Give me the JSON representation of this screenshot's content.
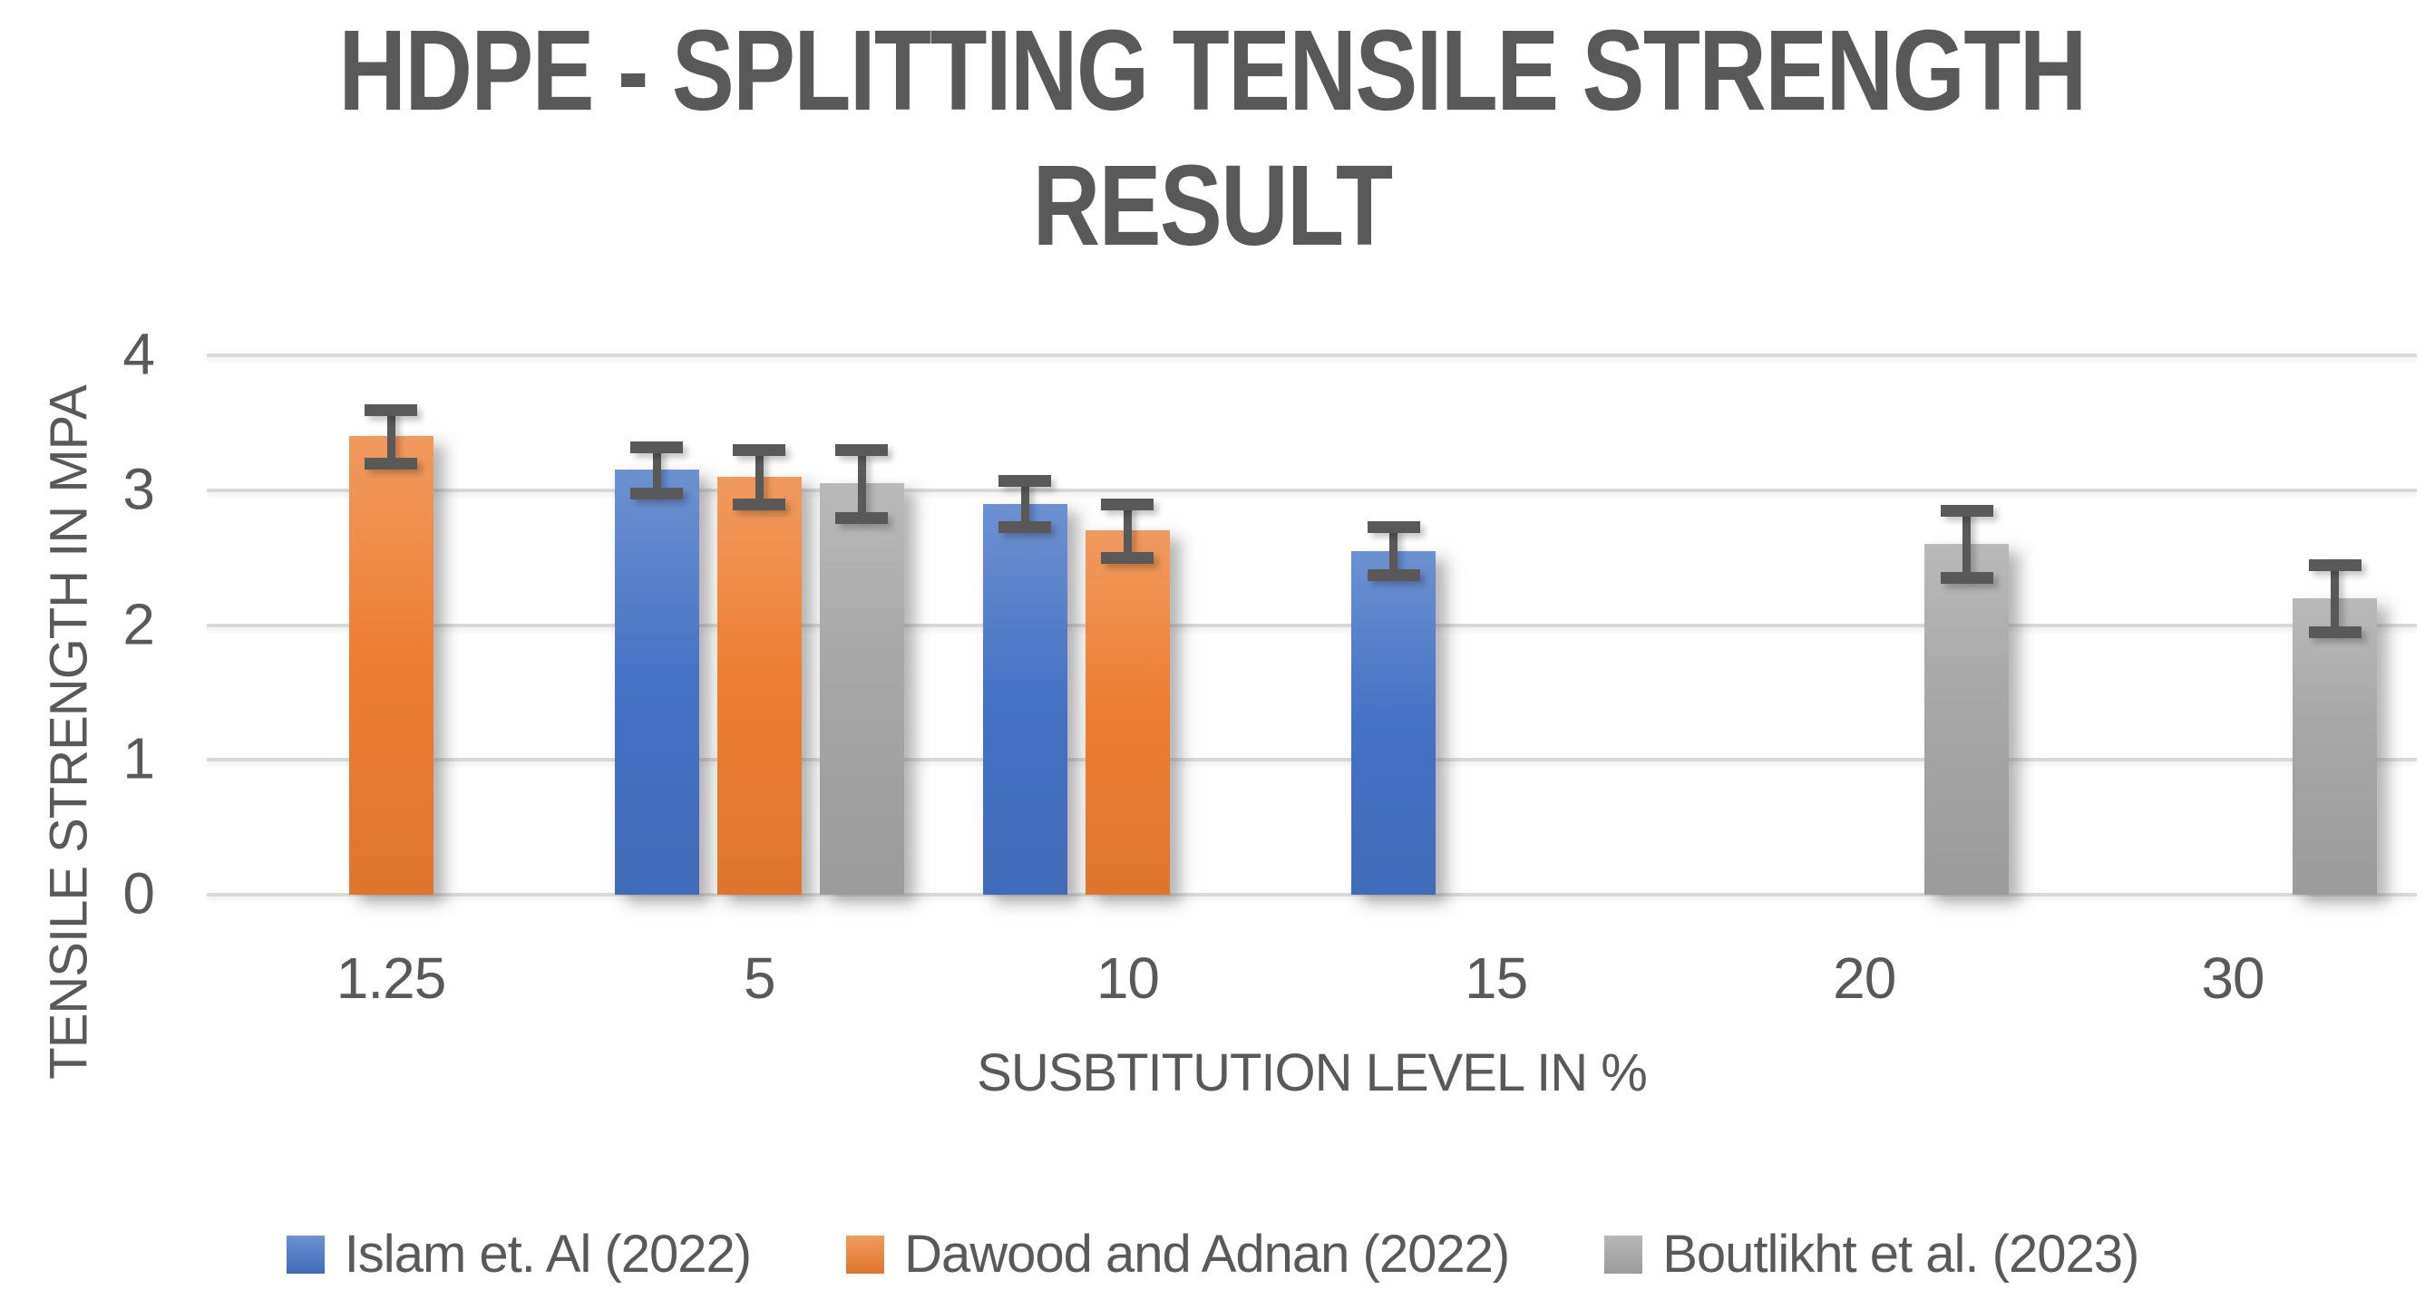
{
  "title_lines": [
    "HDPE - SPLITTING TENSILE STRENGTH",
    "RESULT"
  ],
  "chart_data": {
    "type": "bar",
    "title": "HDPE - SPLITTING TENSILE STRENGTH RESULT",
    "xlabel": "SUSBTITUTION LEVEL IN %",
    "ylabel": "TENSILE STRENGTH IN MPA",
    "categories": [
      "1.25",
      "5",
      "10",
      "15",
      "20",
      "30"
    ],
    "ylim": [
      0,
      4
    ],
    "y_ticks": [
      0,
      1,
      2,
      3,
      4
    ],
    "grid": true,
    "legend_position": "bottom",
    "error_bars": true,
    "axis_text_color": "#595959",
    "gridline_color": "#D9D9D9",
    "series": [
      {
        "name": "Islam et. Al (2022)",
        "color": "#4472C4",
        "values": [
          null,
          3.15,
          2.9,
          2.55,
          null,
          null
        ],
        "errors": [
          null,
          0.17,
          0.17,
          0.18,
          null,
          null
        ]
      },
      {
        "name": "Dawood and Adnan (2022)",
        "color": "#ED7D31",
        "values": [
          3.4,
          3.1,
          2.7,
          null,
          null,
          null
        ],
        "errors": [
          0.2,
          0.2,
          0.2,
          null,
          null,
          null
        ]
      },
      {
        "name": "Boutlikht et al. (2023)",
        "color": "#A5A5A5",
        "values": [
          null,
          3.05,
          null,
          null,
          2.6,
          2.2
        ],
        "errors": [
          null,
          0.25,
          null,
          null,
          0.25,
          0.25
        ]
      }
    ]
  }
}
